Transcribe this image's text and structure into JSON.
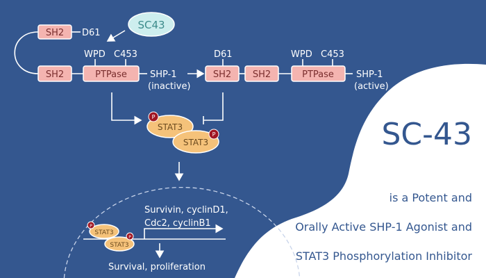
{
  "colors": {
    "background": "#34578f",
    "panel": "#ffffff",
    "domain_box": "#f4b4b0",
    "stat3": "#f5c27a",
    "phospho": "#a01622",
    "drug": "#cdeeee"
  },
  "diagram": {
    "drug": "SC43",
    "inactive": {
      "sh2_top": "SH2",
      "d61": "D61",
      "sh2_bottom": "SH2",
      "wpd": "WPD",
      "c453": "C453",
      "ptpase": "PTPase",
      "name": "SHP-1",
      "state": "(inactive)"
    },
    "active": {
      "d61": "D61",
      "sh2_a": "SH2",
      "sh2_b": "SH2",
      "wpd": "WPD",
      "c453": "C453",
      "ptpase": "PTPase",
      "name": "SHP-1",
      "state": "(active)"
    },
    "stat3": "STAT3",
    "p": "P",
    "genes_line1": "Survivin, cyclinD1,",
    "genes_line2": "Cdc2, cyclinB1",
    "outcome": "Survival, proliferation"
  },
  "title": "SC-43",
  "subtitle": [
    "is a Potent and",
    "Orally Active SHP-1 Agonist and",
    "STAT3 Phosphorylation Inhibitor"
  ]
}
